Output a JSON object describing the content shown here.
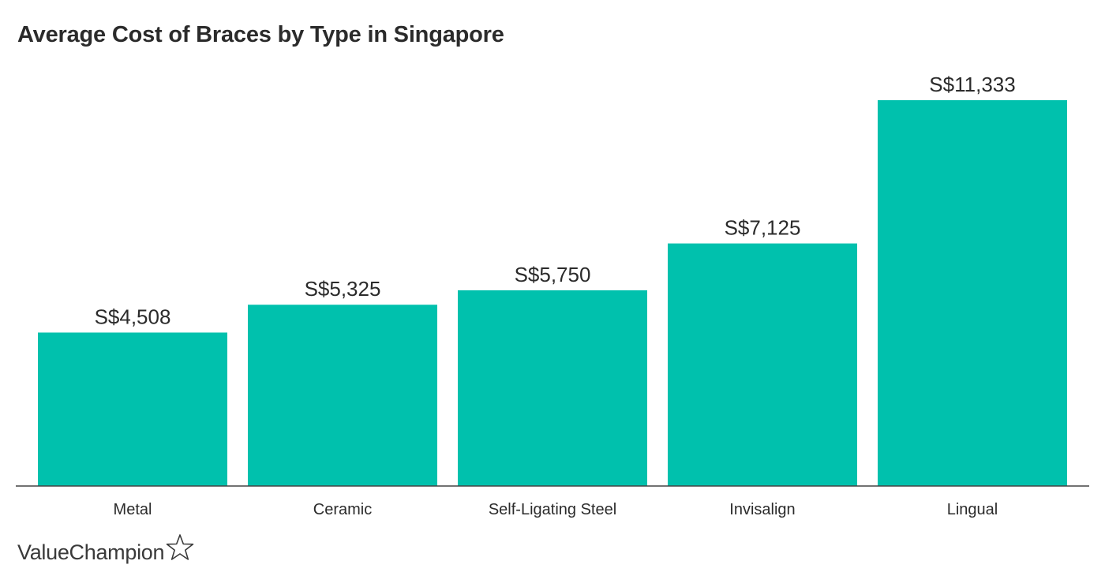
{
  "chart_data": {
    "type": "bar",
    "title": "Average Cost of Braces by Type in Singapore",
    "categories": [
      "Metal",
      "Ceramic",
      "Self-Ligating Steel",
      "Invisalign",
      "Lingual"
    ],
    "values": [
      4508,
      5325,
      5750,
      7125,
      11333
    ],
    "value_labels": [
      "S$4,508",
      "S$5,325",
      "S$5,750",
      "S$7,125",
      "S$11,333"
    ],
    "xlabel": "",
    "ylabel": "",
    "ylim": [
      0,
      11333
    ],
    "grid": false,
    "legend": "none"
  },
  "colors": {
    "bar": "#00c1ad",
    "axis": "#444444",
    "text": "#2b2b2b"
  },
  "brand": {
    "name": "ValueChampion",
    "icon": "star-outline-icon"
  }
}
